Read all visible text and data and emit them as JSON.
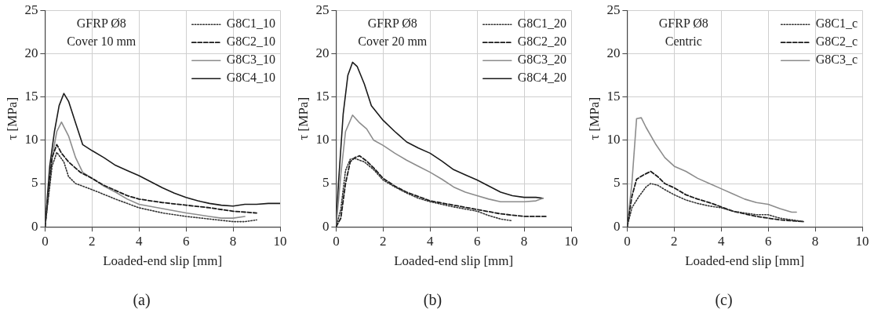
{
  "chart_data": [
    {
      "type": "line",
      "title": "(a)",
      "xlabel": "Loaded-end slip [mm]",
      "ylabel": "τ [MPa]",
      "annotations": [
        "GFRP Ø8",
        "Cover 10 mm"
      ],
      "xlim": [
        0,
        10
      ],
      "xticks": [
        0,
        2,
        4,
        6,
        8,
        10
      ],
      "ylim": [
        0,
        25
      ],
      "yticks": [
        0,
        5,
        10,
        15,
        20,
        25
      ],
      "grid": true,
      "legend": "top right",
      "marker": "none",
      "series": [
        {
          "name": "G8C1_10",
          "color": "#333333",
          "line_style": "dotted",
          "x": [
            0,
            0.3,
            0.5,
            0.8,
            1,
            1.3,
            2,
            3,
            4,
            5,
            6,
            7,
            8,
            8.5,
            9
          ],
          "values": [
            0,
            7,
            8.6,
            7.5,
            5.8,
            5,
            4.3,
            3.2,
            2.2,
            1.6,
            1.2,
            0.9,
            0.6,
            0.6,
            0.8
          ]
        },
        {
          "name": "G8C2_10",
          "color": "#1a1a1a",
          "line_style": "dashed",
          "x": [
            0,
            0.3,
            0.5,
            0.7,
            1,
            1.5,
            2,
            2.5,
            3,
            3.5,
            4,
            5,
            6,
            7,
            8,
            9
          ],
          "values": [
            0,
            8,
            9.5,
            8.5,
            7.5,
            6.3,
            5.6,
            4.8,
            4.2,
            3.6,
            3.2,
            2.8,
            2.5,
            2.2,
            1.8,
            1.6
          ]
        },
        {
          "name": "G8C3_10",
          "color": "#8c8c8c",
          "line_style": "solid",
          "x": [
            0,
            0.3,
            0.5,
            0.7,
            1,
            1.3,
            1.6,
            2,
            2.5,
            3,
            3.5,
            4,
            5,
            6,
            7,
            7.5,
            8,
            8.5
          ],
          "values": [
            0,
            8,
            11,
            12.1,
            10.5,
            8,
            6.3,
            5.6,
            4.7,
            4,
            3.2,
            2.6,
            2.1,
            1.6,
            1.2,
            1,
            1,
            1.2
          ]
        },
        {
          "name": "G8C4_10",
          "color": "#1a1a1a",
          "line_style": "solid",
          "x": [
            0,
            0.2,
            0.4,
            0.6,
            0.8,
            1,
            1.3,
            1.6,
            2,
            2.5,
            3,
            3.5,
            4,
            4.5,
            5,
            5.5,
            6,
            6.5,
            7,
            7.5,
            8,
            8.5,
            9,
            9.5,
            10
          ],
          "values": [
            0,
            7,
            11,
            14,
            15.4,
            14.5,
            12,
            9.5,
            8.8,
            8,
            7.1,
            6.5,
            5.9,
            5.2,
            4.5,
            3.9,
            3.4,
            3,
            2.7,
            2.5,
            2.4,
            2.6,
            2.6,
            2.7,
            2.7
          ]
        }
      ]
    },
    {
      "type": "line",
      "title": "(b)",
      "xlabel": "Loaded-end slip [mm]",
      "ylabel": "τ [MPa]",
      "annotations": [
        "GFRP Ø8",
        "Cover 20 mm"
      ],
      "xlim": [
        0,
        10
      ],
      "xticks": [
        0,
        2,
        4,
        6,
        8,
        10
      ],
      "ylim": [
        0,
        25
      ],
      "yticks": [
        0,
        5,
        10,
        15,
        20,
        25
      ],
      "grid": true,
      "legend": "top right",
      "marker": "none",
      "series": [
        {
          "name": "G8C1_20",
          "color": "#333333",
          "line_style": "dotted",
          "x": [
            0,
            0.2,
            0.4,
            0.6,
            0.8,
            1.2,
            1.6,
            2,
            2.5,
            3,
            3.5,
            4,
            5,
            6,
            6.5,
            7,
            7.5
          ],
          "values": [
            0,
            2,
            6.5,
            7.8,
            7.9,
            7.5,
            6.6,
            5.4,
            4.6,
            3.9,
            3.3,
            2.9,
            2.3,
            1.8,
            1.3,
            0.9,
            0.7
          ]
        },
        {
          "name": "G8C2_20",
          "color": "#1a1a1a",
          "line_style": "dashed",
          "x": [
            0,
            0.2,
            0.4,
            0.6,
            0.8,
            1,
            1.3,
            1.6,
            2,
            2.5,
            3,
            3.5,
            4,
            5,
            6,
            7,
            8,
            9
          ],
          "values": [
            0,
            1,
            5,
            7.5,
            8,
            8.2,
            7.6,
            6.8,
            5.6,
            4.7,
            4,
            3.5,
            3,
            2.5,
            2,
            1.5,
            1.2,
            1.2
          ]
        },
        {
          "name": "G8C3_20",
          "color": "#8c8c8c",
          "line_style": "solid",
          "x": [
            0,
            0.2,
            0.4,
            0.7,
            1,
            1.3,
            1.6,
            2,
            2.5,
            3,
            3.5,
            4,
            4.5,
            5,
            5.5,
            6,
            6.5,
            7,
            7.5,
            8,
            8.5,
            8.8
          ],
          "values": [
            0,
            6,
            11,
            12.9,
            12,
            11.3,
            10,
            9.4,
            8.5,
            7.7,
            7,
            6.3,
            5.5,
            4.6,
            4,
            3.6,
            3.2,
            2.9,
            2.9,
            2.9,
            3,
            3.3
          ]
        },
        {
          "name": "G8C4_20",
          "color": "#1a1a1a",
          "line_style": "solid",
          "x": [
            0,
            0.1,
            0.3,
            0.5,
            0.7,
            0.9,
            1.2,
            1.5,
            2,
            2.5,
            3,
            3.5,
            4,
            4.5,
            5,
            5.5,
            6,
            6.5,
            7,
            7.5,
            8,
            8.5,
            8.8
          ],
          "values": [
            0,
            5,
            13,
            17.5,
            19,
            18.5,
            16.5,
            14,
            12.3,
            11,
            9.8,
            9.1,
            8.5,
            7.6,
            6.6,
            6,
            5.4,
            4.7,
            4,
            3.6,
            3.4,
            3.4,
            3.3
          ]
        }
      ]
    },
    {
      "type": "line",
      "title": "(c)",
      "xlabel": "Loaded-end slip [mm]",
      "ylabel": "τ [MPa]",
      "annotations": [
        "GFRP Ø8",
        "Centric"
      ],
      "xlim": [
        0,
        10
      ],
      "xticks": [
        0,
        2,
        4,
        6,
        8,
        10
      ],
      "ylim": [
        0,
        25
      ],
      "yticks": [
        0,
        5,
        10,
        15,
        20,
        25
      ],
      "grid": true,
      "legend": "top right",
      "marker": "none",
      "series": [
        {
          "name": "G8C1_c",
          "color": "#333333",
          "line_style": "dotted",
          "x": [
            0,
            0.2,
            0.5,
            0.8,
            1,
            1.3,
            1.6,
            2,
            2.5,
            3,
            3.5,
            4,
            4.5,
            5,
            5.5,
            6,
            6.5,
            7,
            7.5
          ],
          "values": [
            0,
            2.2,
            3.5,
            4.6,
            5,
            4.8,
            4.3,
            3.7,
            3.1,
            2.7,
            2.4,
            2.2,
            1.8,
            1.6,
            1.4,
            1.4,
            1,
            0.8,
            0.6
          ]
        },
        {
          "name": "G8C2_c",
          "color": "#1a1a1a",
          "line_style": "dashed",
          "x": [
            0,
            0.2,
            0.4,
            0.7,
            1,
            1.3,
            1.6,
            2,
            2.5,
            3,
            3.5,
            4,
            4.5,
            5,
            5.5,
            6,
            6.5,
            7,
            7.5
          ],
          "values": [
            0,
            3.5,
            5.5,
            6,
            6.4,
            5.8,
            5,
            4.5,
            3.7,
            3.2,
            2.8,
            2.3,
            1.8,
            1.5,
            1.2,
            1,
            0.8,
            0.7,
            0.6
          ]
        },
        {
          "name": "G8C3_c",
          "color": "#8c8c8c",
          "line_style": "solid",
          "x": [
            0,
            0.2,
            0.4,
            0.6,
            0.8,
            1.2,
            1.6,
            2,
            2.5,
            3,
            3.5,
            4,
            4.5,
            5,
            5.5,
            6,
            6.5,
            7,
            7.2
          ],
          "values": [
            0,
            5,
            12.5,
            12.6,
            11.5,
            9.6,
            8,
            7,
            6.4,
            5.6,
            5,
            4.4,
            3.8,
            3.2,
            2.8,
            2.6,
            2.1,
            1.7,
            1.7
          ]
        }
      ]
    }
  ]
}
